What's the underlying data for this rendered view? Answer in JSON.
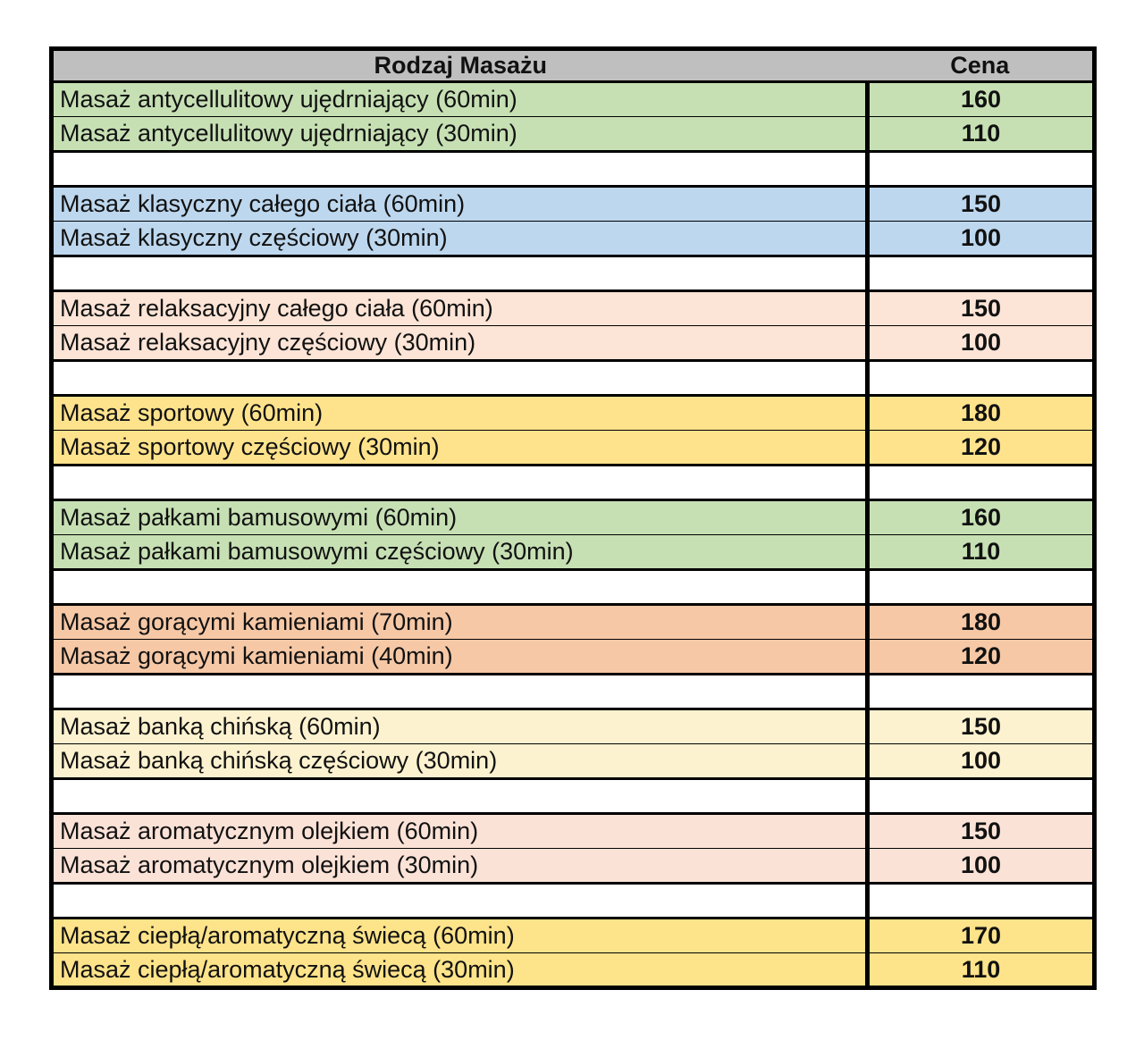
{
  "page": {
    "background": "#ffffff",
    "text_color": "#111111",
    "border_color": "#000000"
  },
  "table": {
    "header": {
      "massage_type_label": "Rodzaj Masażu",
      "price_label": "Cena",
      "background": "#BFBFBF"
    },
    "groups": [
      {
        "color": "#C6E0B4",
        "rows": [
          {
            "name": "Masaż antycellulitowy ujędrniający (60min)",
            "price": "160"
          },
          {
            "name": "Masaż antycellulitowy ujędrniający (30min)",
            "price": "110"
          }
        ]
      },
      {
        "color": "#BDD7EE",
        "rows": [
          {
            "name": "Masaż klasyczny całego ciała (60min)",
            "price": "150"
          },
          {
            "name": "Masaż klasyczny częściowy (30min)",
            "price": "100"
          }
        ]
      },
      {
        "color": "#FCE4D6",
        "rows": [
          {
            "name": "Masaż relaksacyjny całego ciała (60min)",
            "price": "150"
          },
          {
            "name": "Masaż relaksacyjny częściowy (30min)",
            "price": "100"
          }
        ]
      },
      {
        "color": "#FFE38C",
        "rows": [
          {
            "name": "Masaż sportowy (60min)",
            "price": "180"
          },
          {
            "name": "Masaż sportowy częściowy (30min)",
            "price": "120"
          }
        ]
      },
      {
        "color": "#C6E0B4",
        "rows": [
          {
            "name": "Masaż pałkami bamusowymi (60min)",
            "price": "160"
          },
          {
            "name": "Masaż pałkami bamusowymi częściowy (30min)",
            "price": "110"
          }
        ]
      },
      {
        "color": "#F6C8A6",
        "rows": [
          {
            "name": "Masaż gorącymi kamieniami (70min)",
            "price": "180"
          },
          {
            "name": "Masaż gorącymi kamieniami (40min)",
            "price": "120"
          }
        ]
      },
      {
        "color": "#FDF2CF",
        "rows": [
          {
            "name": "Masaż banką chińską (60min)",
            "price": "150"
          },
          {
            "name": "Masaż banką chińską częściowy (30min)",
            "price": "100"
          }
        ]
      },
      {
        "color": "#FBE2D7",
        "rows": [
          {
            "name": "Masaż aromatycznym olejkiem (60min)",
            "price": "150"
          },
          {
            "name": "Masaż aromatycznym olejkiem (30min)",
            "price": "100"
          }
        ]
      },
      {
        "color": "#FDE38A",
        "rows": [
          {
            "name": "Masaż ciepłą/aromatyczną świecą (60min)",
            "price": "170"
          },
          {
            "name": "Masaż ciepłą/aromatyczną świecą (30min)",
            "price": "110"
          }
        ]
      }
    ]
  }
}
